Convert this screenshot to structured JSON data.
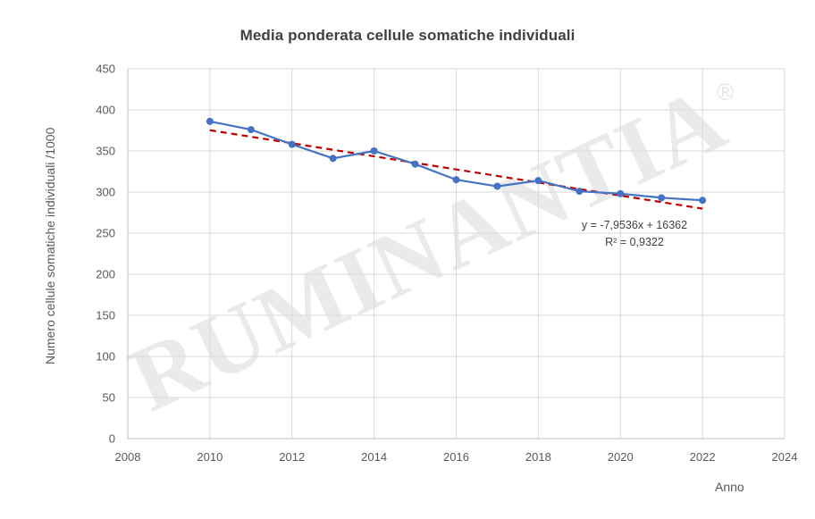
{
  "chart_data": {
    "type": "line",
    "title": "Media ponderata cellule somatiche individuali",
    "xlabel": "Anno",
    "ylabel": "Numero cellule somatiche individuali /1000",
    "xlim": [
      2008,
      2024
    ],
    "ylim": [
      0,
      450
    ],
    "x_ticks": [
      2008,
      2010,
      2012,
      2014,
      2016,
      2018,
      2020,
      2022,
      2024
    ],
    "y_ticks": [
      0,
      50,
      100,
      150,
      200,
      250,
      300,
      350,
      400,
      450
    ],
    "grid": true,
    "legend": "none",
    "series": [
      {
        "color": "#4472c4",
        "x": [
          2010,
          2011,
          2012,
          2013,
          2014,
          2015,
          2016,
          2017,
          2018,
          2019,
          2020,
          2021,
          2022
        ],
        "y": [
          386,
          376,
          358,
          341,
          350,
          334,
          315,
          307,
          314,
          301,
          298,
          293,
          290
        ]
      }
    ],
    "trendline": {
      "type": "linear",
      "color": "#c00000",
      "style": "dashed",
      "slope": -7.9536,
      "intercept": 16362,
      "x_range": [
        2010,
        2022
      ],
      "equation": "y = -7,9536x + 16362",
      "r_squared": "R² = 0,9322"
    },
    "watermark": {
      "text": "RUMINANTIA",
      "mark": "®"
    }
  }
}
